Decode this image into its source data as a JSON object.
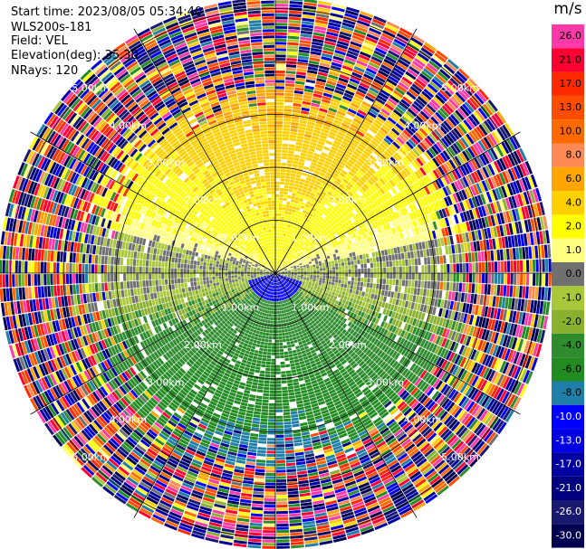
{
  "info": {
    "start_time": "Start time: 2023/08/05 05:34:40",
    "instrument": "WLS200s-181",
    "field": "Field: VEL",
    "elevation": "Elevation(deg): 35.30",
    "nrays": "NRays: 120"
  },
  "colorbar": {
    "unit": "m/s",
    "levels": [
      {
        "label": "26.0",
        "color": "#ff3aa8"
      },
      {
        "label": "21.0",
        "color": "#ff0033"
      },
      {
        "label": "17.0",
        "color": "#ff2a00"
      },
      {
        "label": "13.0",
        "color": "#ff4d00"
      },
      {
        "label": "10.0",
        "color": "#ff6a00"
      },
      {
        "label": "8.0",
        "color": "#ff8a55"
      },
      {
        "label": "6.0",
        "color": "#ffa500"
      },
      {
        "label": "4.0",
        "color": "#ffd000"
      },
      {
        "label": "2.0",
        "color": "#ffff00"
      },
      {
        "label": "1.0",
        "color": "#ffff80"
      },
      {
        "label": "0.0",
        "color": "#707070"
      },
      {
        "label": "-1.0",
        "color": "#a8c83a"
      },
      {
        "label": "-2.0",
        "color": "#8ab030"
      },
      {
        "label": "-4.0",
        "color": "#2e8b2e"
      },
      {
        "label": "-6.0",
        "color": "#228b22"
      },
      {
        "label": "-8.0",
        "color": "#1f7fa8"
      },
      {
        "label": "-10.0",
        "color": "#0000ff"
      },
      {
        "label": "-13.0",
        "color": "#0000e0"
      },
      {
        "label": "-17.0",
        "color": "#0000a0"
      },
      {
        "label": "-21.0",
        "color": "#000080"
      },
      {
        "label": "-26.0",
        "color": "#191970"
      },
      {
        "label": "-30.0",
        "color": "#000050"
      }
    ]
  },
  "chart_data": {
    "type": "heatmap",
    "projection": "polar",
    "range_rings_km": [
      1.0,
      2.0,
      3.0,
      4.0,
      5.0
    ],
    "ring_labels": [
      "1.00km",
      "2.00km",
      "3.00km",
      "4.00km",
      "5.00km"
    ],
    "azimuth_spokes_deg": [
      0,
      30,
      60,
      90,
      120,
      150,
      180,
      210,
      240,
      270,
      300,
      330
    ],
    "n_rays": 120,
    "max_range_km": 5.2,
    "field": "VEL",
    "units": "m/s",
    "vmin": -30.0,
    "vmax": 30.0
  }
}
